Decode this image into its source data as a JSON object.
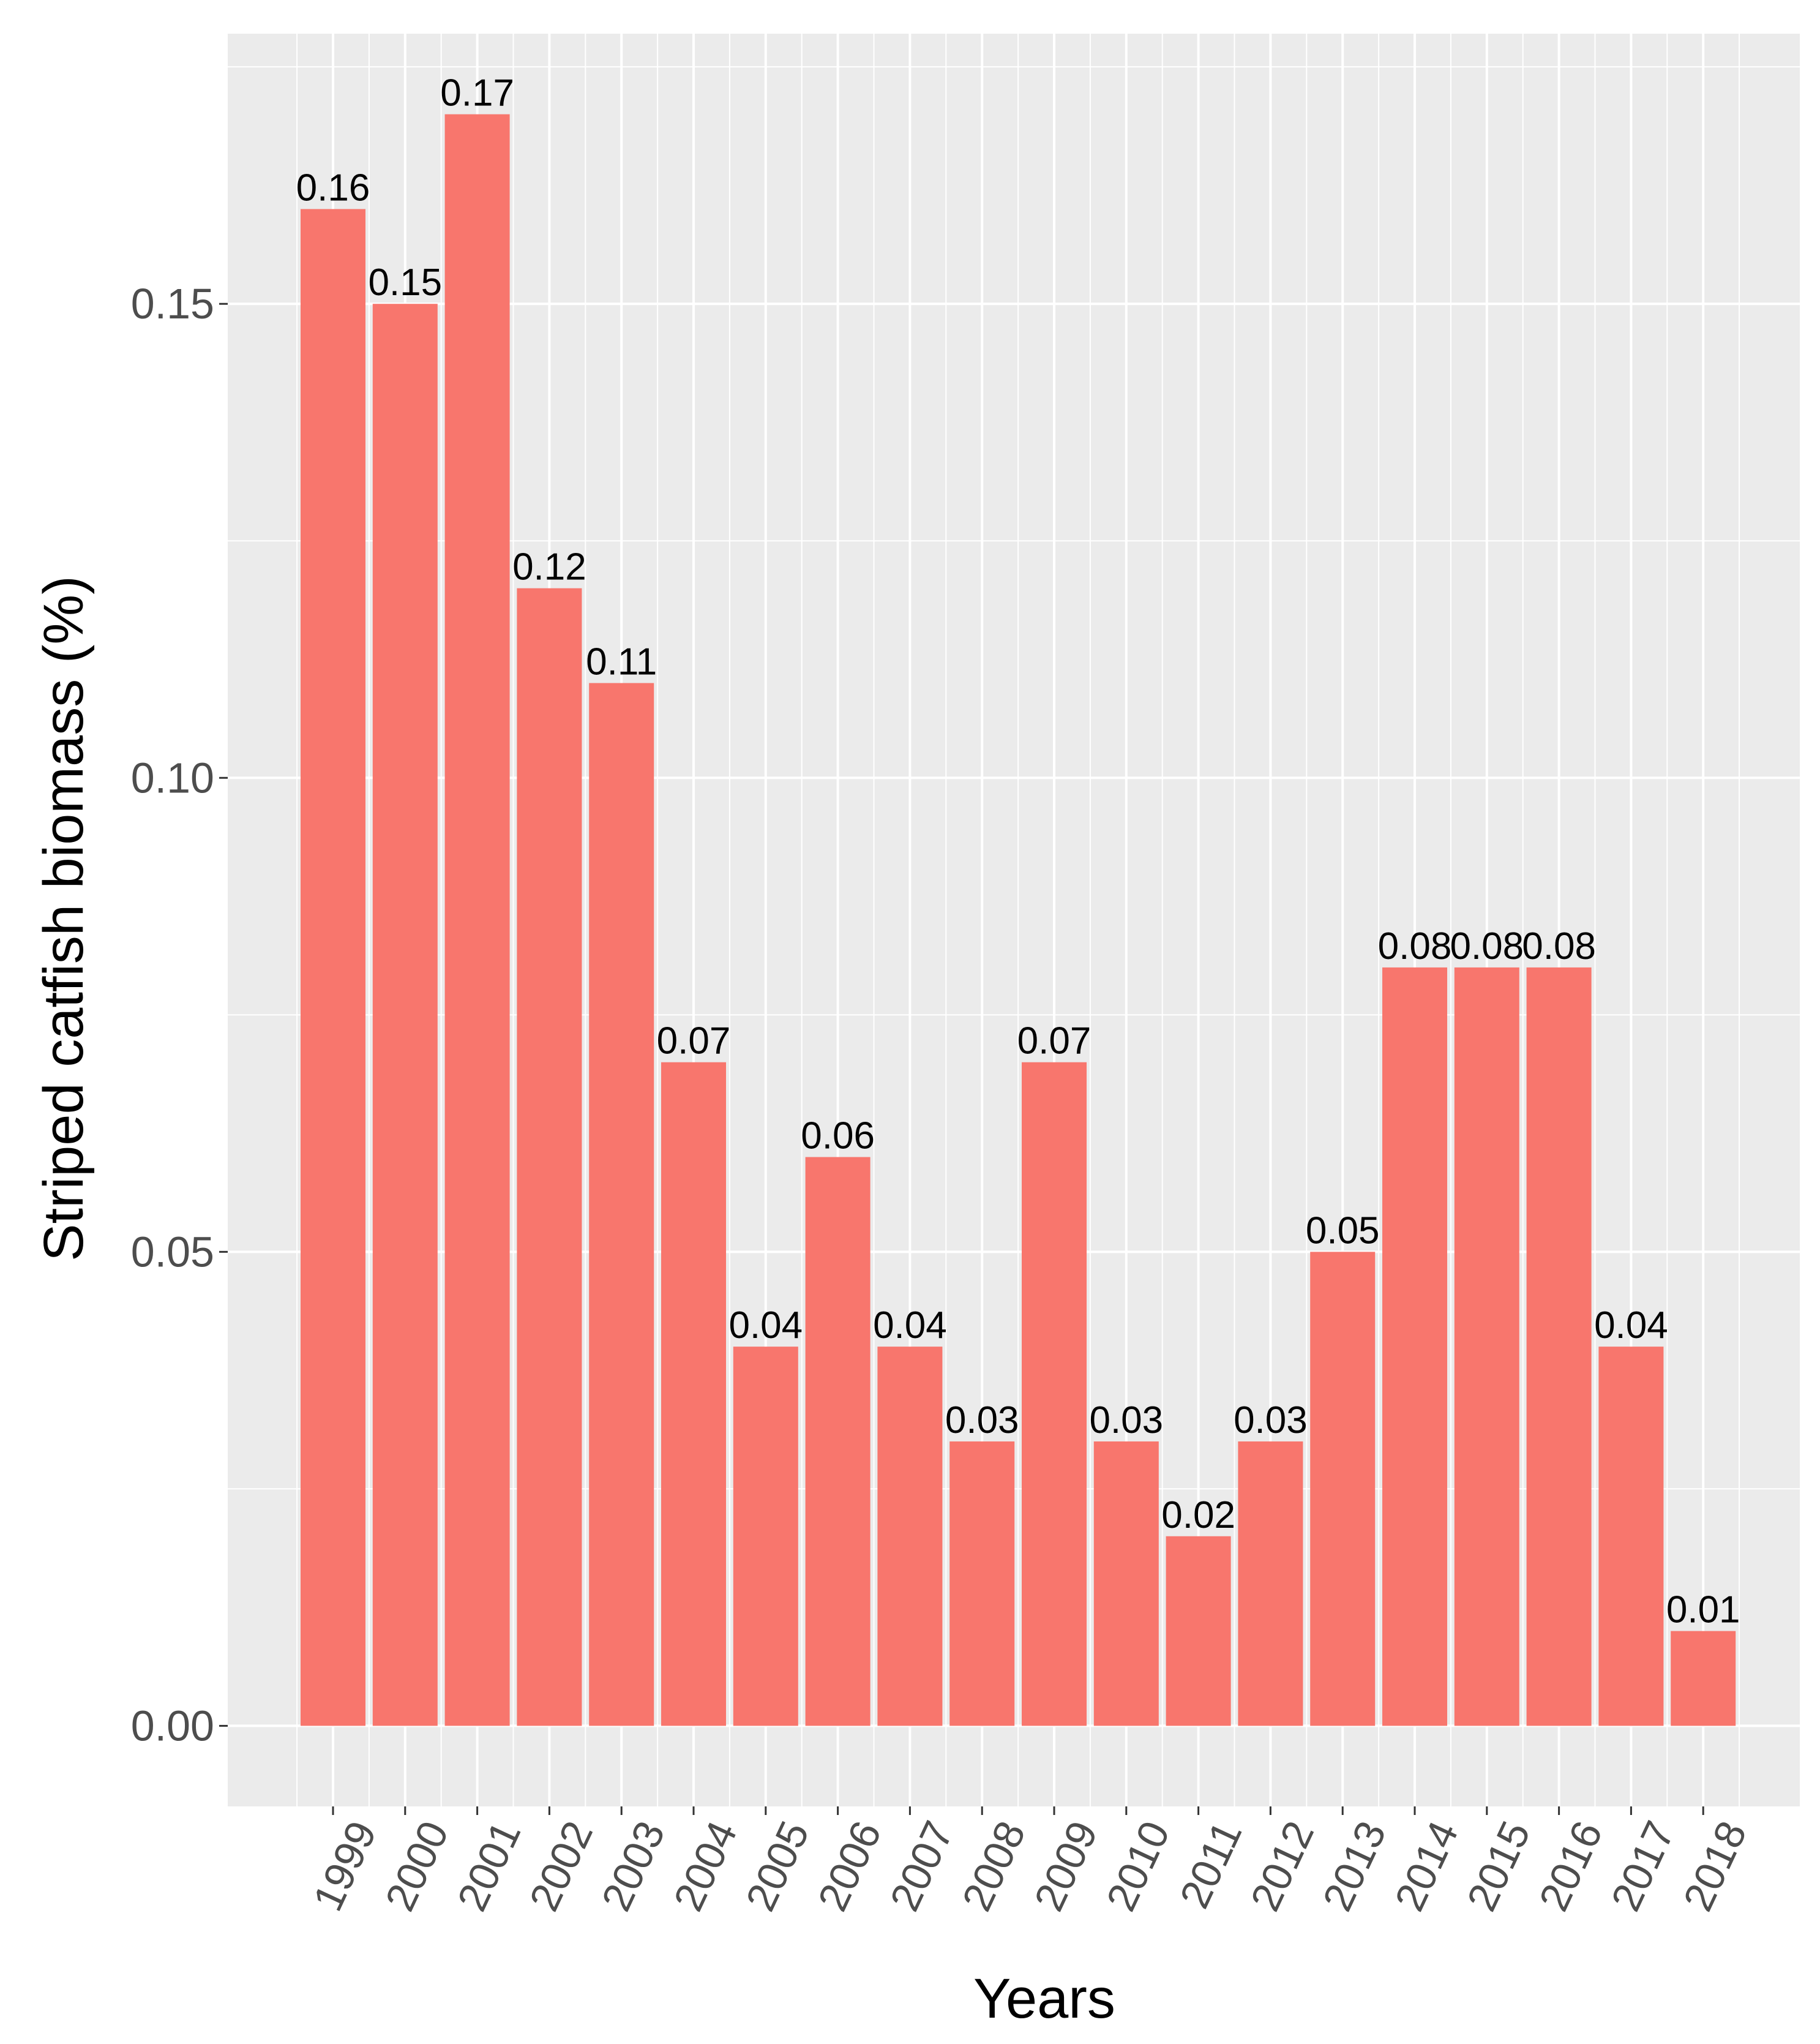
{
  "chart_data": {
    "type": "bar",
    "title": "",
    "xlabel": "Years",
    "ylabel": "Striped catfish biomass (%)",
    "categories": [
      "1999",
      "2000",
      "2001",
      "2002",
      "2003",
      "2004",
      "2005",
      "2006",
      "2007",
      "2008",
      "2009",
      "2010",
      "2011",
      "2012",
      "2013",
      "2014",
      "2015",
      "2016",
      "2017",
      "2018"
    ],
    "values": [
      0.16,
      0.15,
      0.17,
      0.12,
      0.11,
      0.07,
      0.04,
      0.06,
      0.04,
      0.03,
      0.07,
      0.03,
      0.02,
      0.03,
      0.05,
      0.08,
      0.08,
      0.08,
      0.04,
      0.01
    ],
    "data_labels": [
      "0.16",
      "0.15",
      "0.17",
      "0.12",
      "0.11",
      "0.07",
      "0.04",
      "0.06",
      "0.04",
      "0.03",
      "0.07",
      "0.03",
      "0.02",
      "0.03",
      "0.05",
      "0.08",
      "0.08",
      "0.08",
      "0.04",
      "0.01"
    ],
    "yticks": [
      0.0,
      0.05,
      0.1,
      0.15
    ],
    "ytick_labels": [
      "0.00",
      "0.05",
      "0.10",
      "0.15"
    ],
    "ylim": [
      -0.0085,
      0.1785
    ],
    "grid": true,
    "legend": "none",
    "colors": {
      "bar": "#F8766D",
      "panel": "#EBEBEB",
      "grid": "#FFFFFF",
      "tick_text": "#4D4D4D",
      "label_text": "#000000"
    }
  }
}
